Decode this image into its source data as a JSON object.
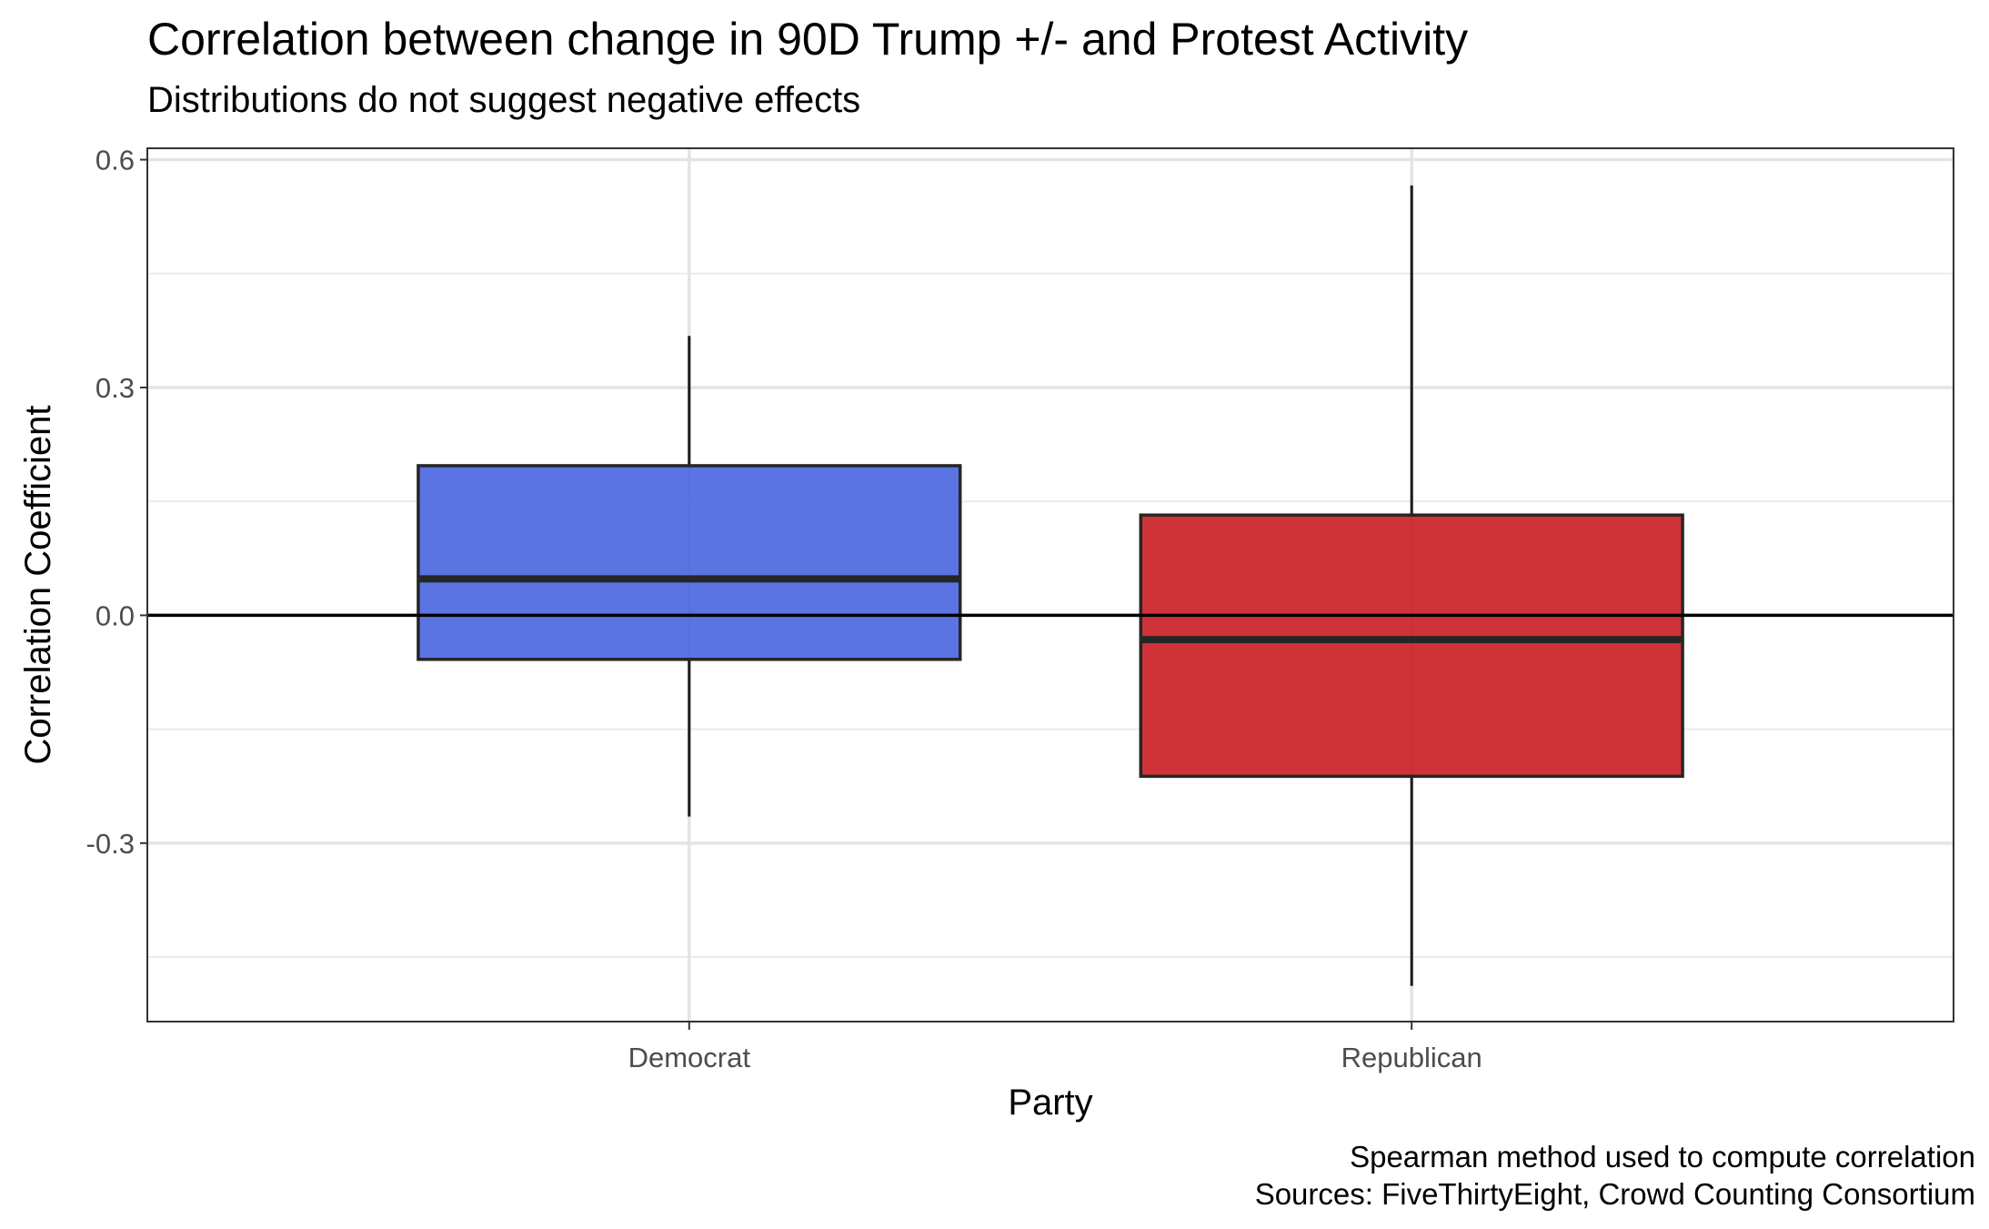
{
  "chart_data": {
    "type": "box",
    "title": "Correlation between change in 90D Trump +/- and Protest Activity",
    "subtitle": "Distributions do not suggest negative effects",
    "xlabel": "Party",
    "ylabel": "Correlation Coefficient",
    "categories": [
      "Democrat",
      "Republican"
    ],
    "boxes": [
      {
        "name": "Democrat",
        "min": -0.265,
        "q1": -0.058,
        "median": 0.048,
        "q3": 0.197,
        "max": 0.368,
        "color": "#4161DE"
      },
      {
        "name": "Republican",
        "min": -0.488,
        "q1": -0.212,
        "median": -0.032,
        "q3": 0.132,
        "max": 0.566,
        "color": "#C8151B"
      }
    ],
    "ylim": [
      -0.535,
      0.615
    ],
    "yticks": [
      -0.3,
      0.0,
      0.3,
      0.6
    ],
    "ytick_labels": [
      "-0.3",
      "0.0",
      "0.3",
      "0.6"
    ],
    "reference_line": 0.0,
    "grid": true,
    "caption_lines": [
      "Spearman method used to compute correlation",
      "Sources: FiveThirtyEight, Crowd Counting Consortium"
    ]
  }
}
